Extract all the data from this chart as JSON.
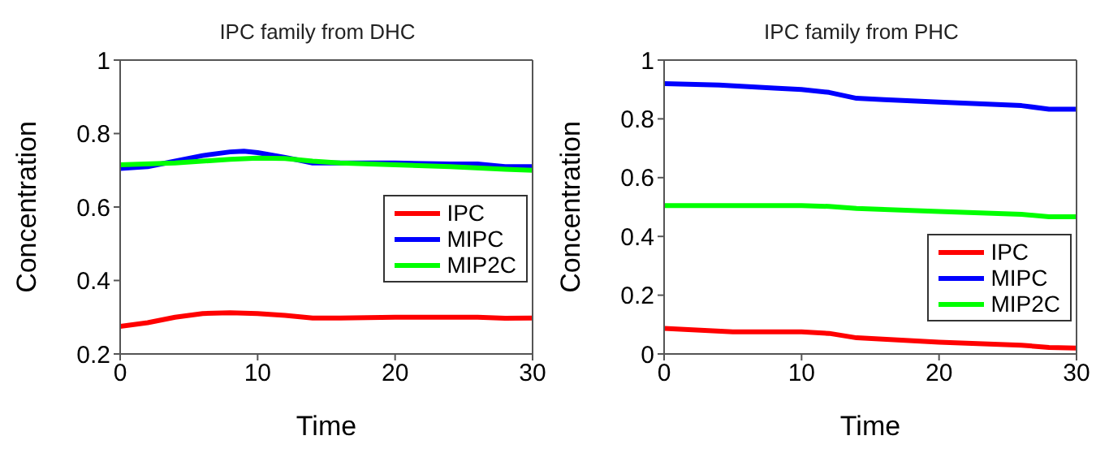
{
  "chart_data": [
    {
      "type": "line",
      "title": "IPC family from DHC",
      "xlabel": "Time",
      "ylabel": "Concentration",
      "xlim": [
        0,
        30
      ],
      "xticks": [
        0,
        10,
        20,
        30
      ],
      "ylim": [
        0.2,
        1
      ],
      "yticks": [
        0.2,
        0.4,
        0.6,
        0.8,
        1
      ],
      "grid": false,
      "legend": "right",
      "marker": "none",
      "line_style": "solid",
      "series": [
        {
          "name": "IPC",
          "color": "#ff0000",
          "x": [
            0,
            2,
            4,
            6,
            8,
            10,
            12,
            14,
            16,
            20,
            24,
            26,
            28,
            30
          ],
          "values": [
            0.275,
            0.285,
            0.3,
            0.31,
            0.312,
            0.31,
            0.305,
            0.298,
            0.298,
            0.3,
            0.3,
            0.3,
            0.297,
            0.298
          ]
        },
        {
          "name": "MIPC",
          "color": "#0000ff",
          "x": [
            0,
            2,
            4,
            6,
            8,
            9,
            10,
            12,
            14,
            16,
            20,
            24,
            26,
            28,
            30
          ],
          "values": [
            0.705,
            0.71,
            0.725,
            0.74,
            0.75,
            0.752,
            0.748,
            0.735,
            0.72,
            0.72,
            0.72,
            0.717,
            0.717,
            0.71,
            0.71
          ]
        },
        {
          "name": "MIP2C",
          "color": "#00ff00",
          "x": [
            0,
            4,
            8,
            10,
            12,
            14,
            16,
            20,
            24,
            28,
            30
          ],
          "values": [
            0.715,
            0.72,
            0.73,
            0.733,
            0.732,
            0.725,
            0.72,
            0.715,
            0.71,
            0.703,
            0.7
          ]
        }
      ]
    },
    {
      "type": "line",
      "title": "IPC family from PHC",
      "xlabel": "Time",
      "ylabel": "Concentration",
      "xlim": [
        0,
        30
      ],
      "xticks": [
        0,
        10,
        20,
        30
      ],
      "ylim": [
        0,
        1
      ],
      "yticks": [
        0,
        0.2,
        0.4,
        0.6,
        0.8,
        1
      ],
      "grid": false,
      "legend": "bottom right",
      "marker": "none",
      "line_style": "solid",
      "series": [
        {
          "name": "IPC",
          "color": "#ff0000",
          "x": [
            0,
            5,
            10,
            12,
            14,
            20,
            26,
            28,
            30
          ],
          "values": [
            0.087,
            0.075,
            0.075,
            0.07,
            0.055,
            0.04,
            0.03,
            0.022,
            0.02
          ]
        },
        {
          "name": "MIPC",
          "color": "#0000ff",
          "x": [
            0,
            4,
            8,
            10,
            12,
            14,
            16,
            20,
            26,
            28,
            30
          ],
          "values": [
            0.92,
            0.915,
            0.905,
            0.9,
            0.89,
            0.87,
            0.865,
            0.857,
            0.845,
            0.833,
            0.833
          ]
        },
        {
          "name": "MIP2C",
          "color": "#00ff00",
          "x": [
            0,
            5,
            10,
            12,
            14,
            20,
            26,
            28,
            30
          ],
          "values": [
            0.505,
            0.505,
            0.505,
            0.502,
            0.495,
            0.485,
            0.475,
            0.467,
            0.467
          ]
        }
      ]
    }
  ]
}
